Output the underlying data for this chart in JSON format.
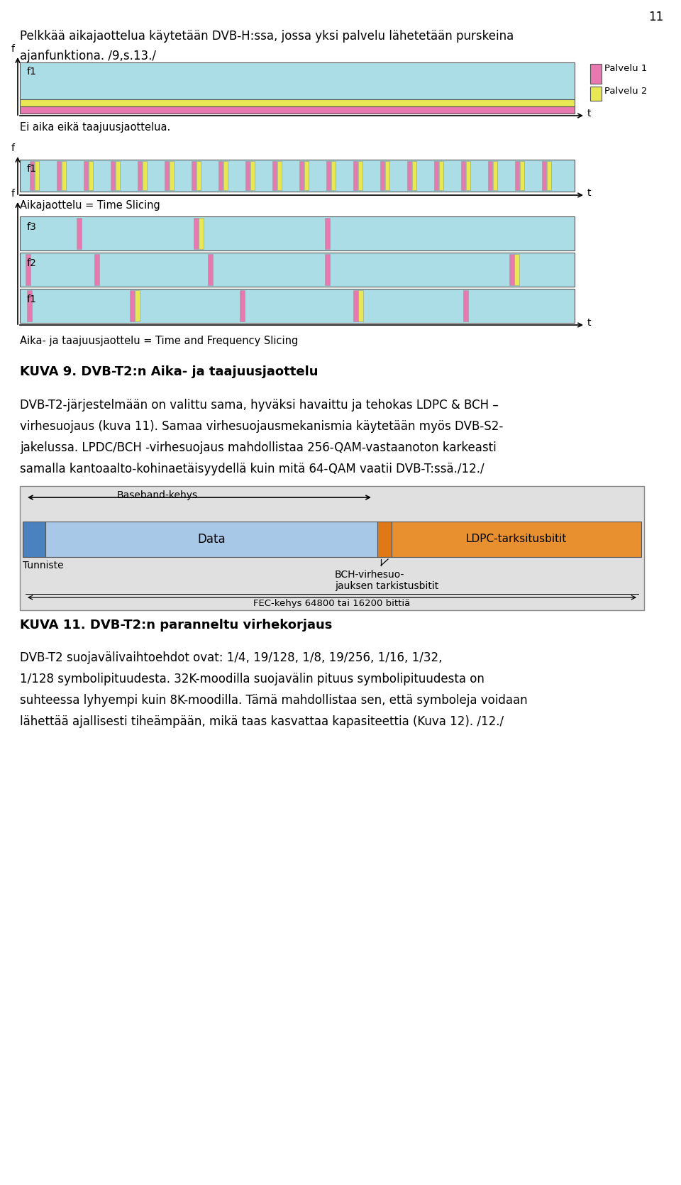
{
  "page_number": "11",
  "bg_color": "#ffffff",
  "para1": "Pelkkää aikajaottelua käytetään DVB-H:ssa, jossa yksi palvelu lähetetään purskeina",
  "para1b": "ajanfunktiona. /9,s.13./",
  "diagram1_f1": "f1",
  "diagram1_cyan": "#aadde6",
  "diagram1_yellow": "#e8e855",
  "diagram1_pink": "#e878b0",
  "diagram1_caption": "Ei aika eikä taajuusjaottelua.",
  "palvelu1": "Palvelu 1",
  "palvelu2": "Palvelu 2",
  "diagram2_caption": "Aikajaottelu = Time Slicing",
  "diagram3_f1": "f1",
  "diagram3_f2": "f2",
  "diagram3_f3": "f3",
  "diagram3_caption": "Aika- ja taajuusjaottelu = Time and Frequency Slicing",
  "section_title": "KUVA 9. DVB-T2:n Aika- ja taajuusjaottelu",
  "body_line1": "DVB-T2-järjestelmään on valittu sama, hyväksi havaittu ja tehokas LDPC & BCH –",
  "body_line2": "virhesuojaus (kuva 11). Samaa virhesuojausmekanismia käytetään myös DVB-S2-",
  "body_line3": "jakelussa. LPDC/BCH -virhesuojaus mahdollistaa 256-QAM-vastaanoton karkeasti",
  "body_line4": "samalla kantoaalto-kohinaetäisyydellä kuin mitä 64-QAM vaatii DVB-T:ssä./12./",
  "fec_title": "KUVA 11. DVB-T2:n paranneltu virhekorjaus",
  "fec_bg": "#e0e0e0",
  "fec_blue_dark": "#4a82c0",
  "fec_blue_light": "#a8c8e8",
  "fec_orange_div": "#e07818",
  "fec_orange": "#e89030",
  "fec_label_baseband": "Baseband-kehys",
  "fec_label_data": "Data",
  "fec_label_ldpc": "LDPC-tarksitusbitit",
  "fec_label_tunniste": "Tunniste",
  "fec_label_bch1": "BCH-virhesuo-",
  "fec_label_bch2": "jauksen tarkistusbitit",
  "fec_label_fec": "FEC-kehys 64800 tai 16200 bittiä",
  "footer_line1": "DVB-T2 suojavälivaihtoehdot ovat: 1/4, 19/128, 1/8, 19/256, 1/16, 1/32,",
  "footer_line2": "1/128 symbolipituudesta. 32K-moodilla suojavälin pituus symbolipituudesta on",
  "footer_line3": "suhteessa lyhyempi kuin 8K-moodilla. Tämä mahdollistaa sen, että symboleja voidaan",
  "footer_line4": "lähettää ajallisesti tiheämpään, mikä taas kasvattaa kapasiteettia (Kuva 12). /12./"
}
